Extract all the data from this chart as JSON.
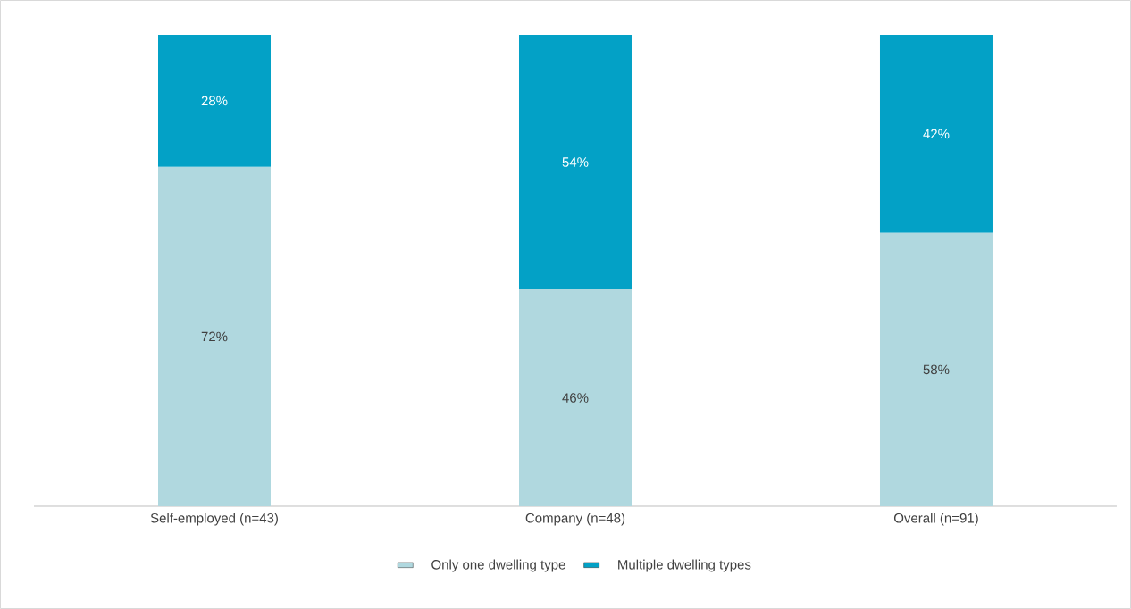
{
  "chart_data": {
    "type": "bar",
    "stacked": true,
    "categories": [
      "Self-employed (n=43)",
      "Company (n=48)",
      "Overall (n=91)"
    ],
    "series": [
      {
        "name": "Only one dwelling type",
        "color": "#b0d8df",
        "values": [
          72,
          46,
          58
        ],
        "value_labels": [
          "72%",
          "46%",
          "58%"
        ]
      },
      {
        "name": "Multiple dwelling types",
        "color": "#03a1c6",
        "values": [
          28,
          54,
          42
        ],
        "value_labels": [
          "28%",
          "54%",
          "42%"
        ]
      }
    ],
    "legend": "bottom"
  }
}
